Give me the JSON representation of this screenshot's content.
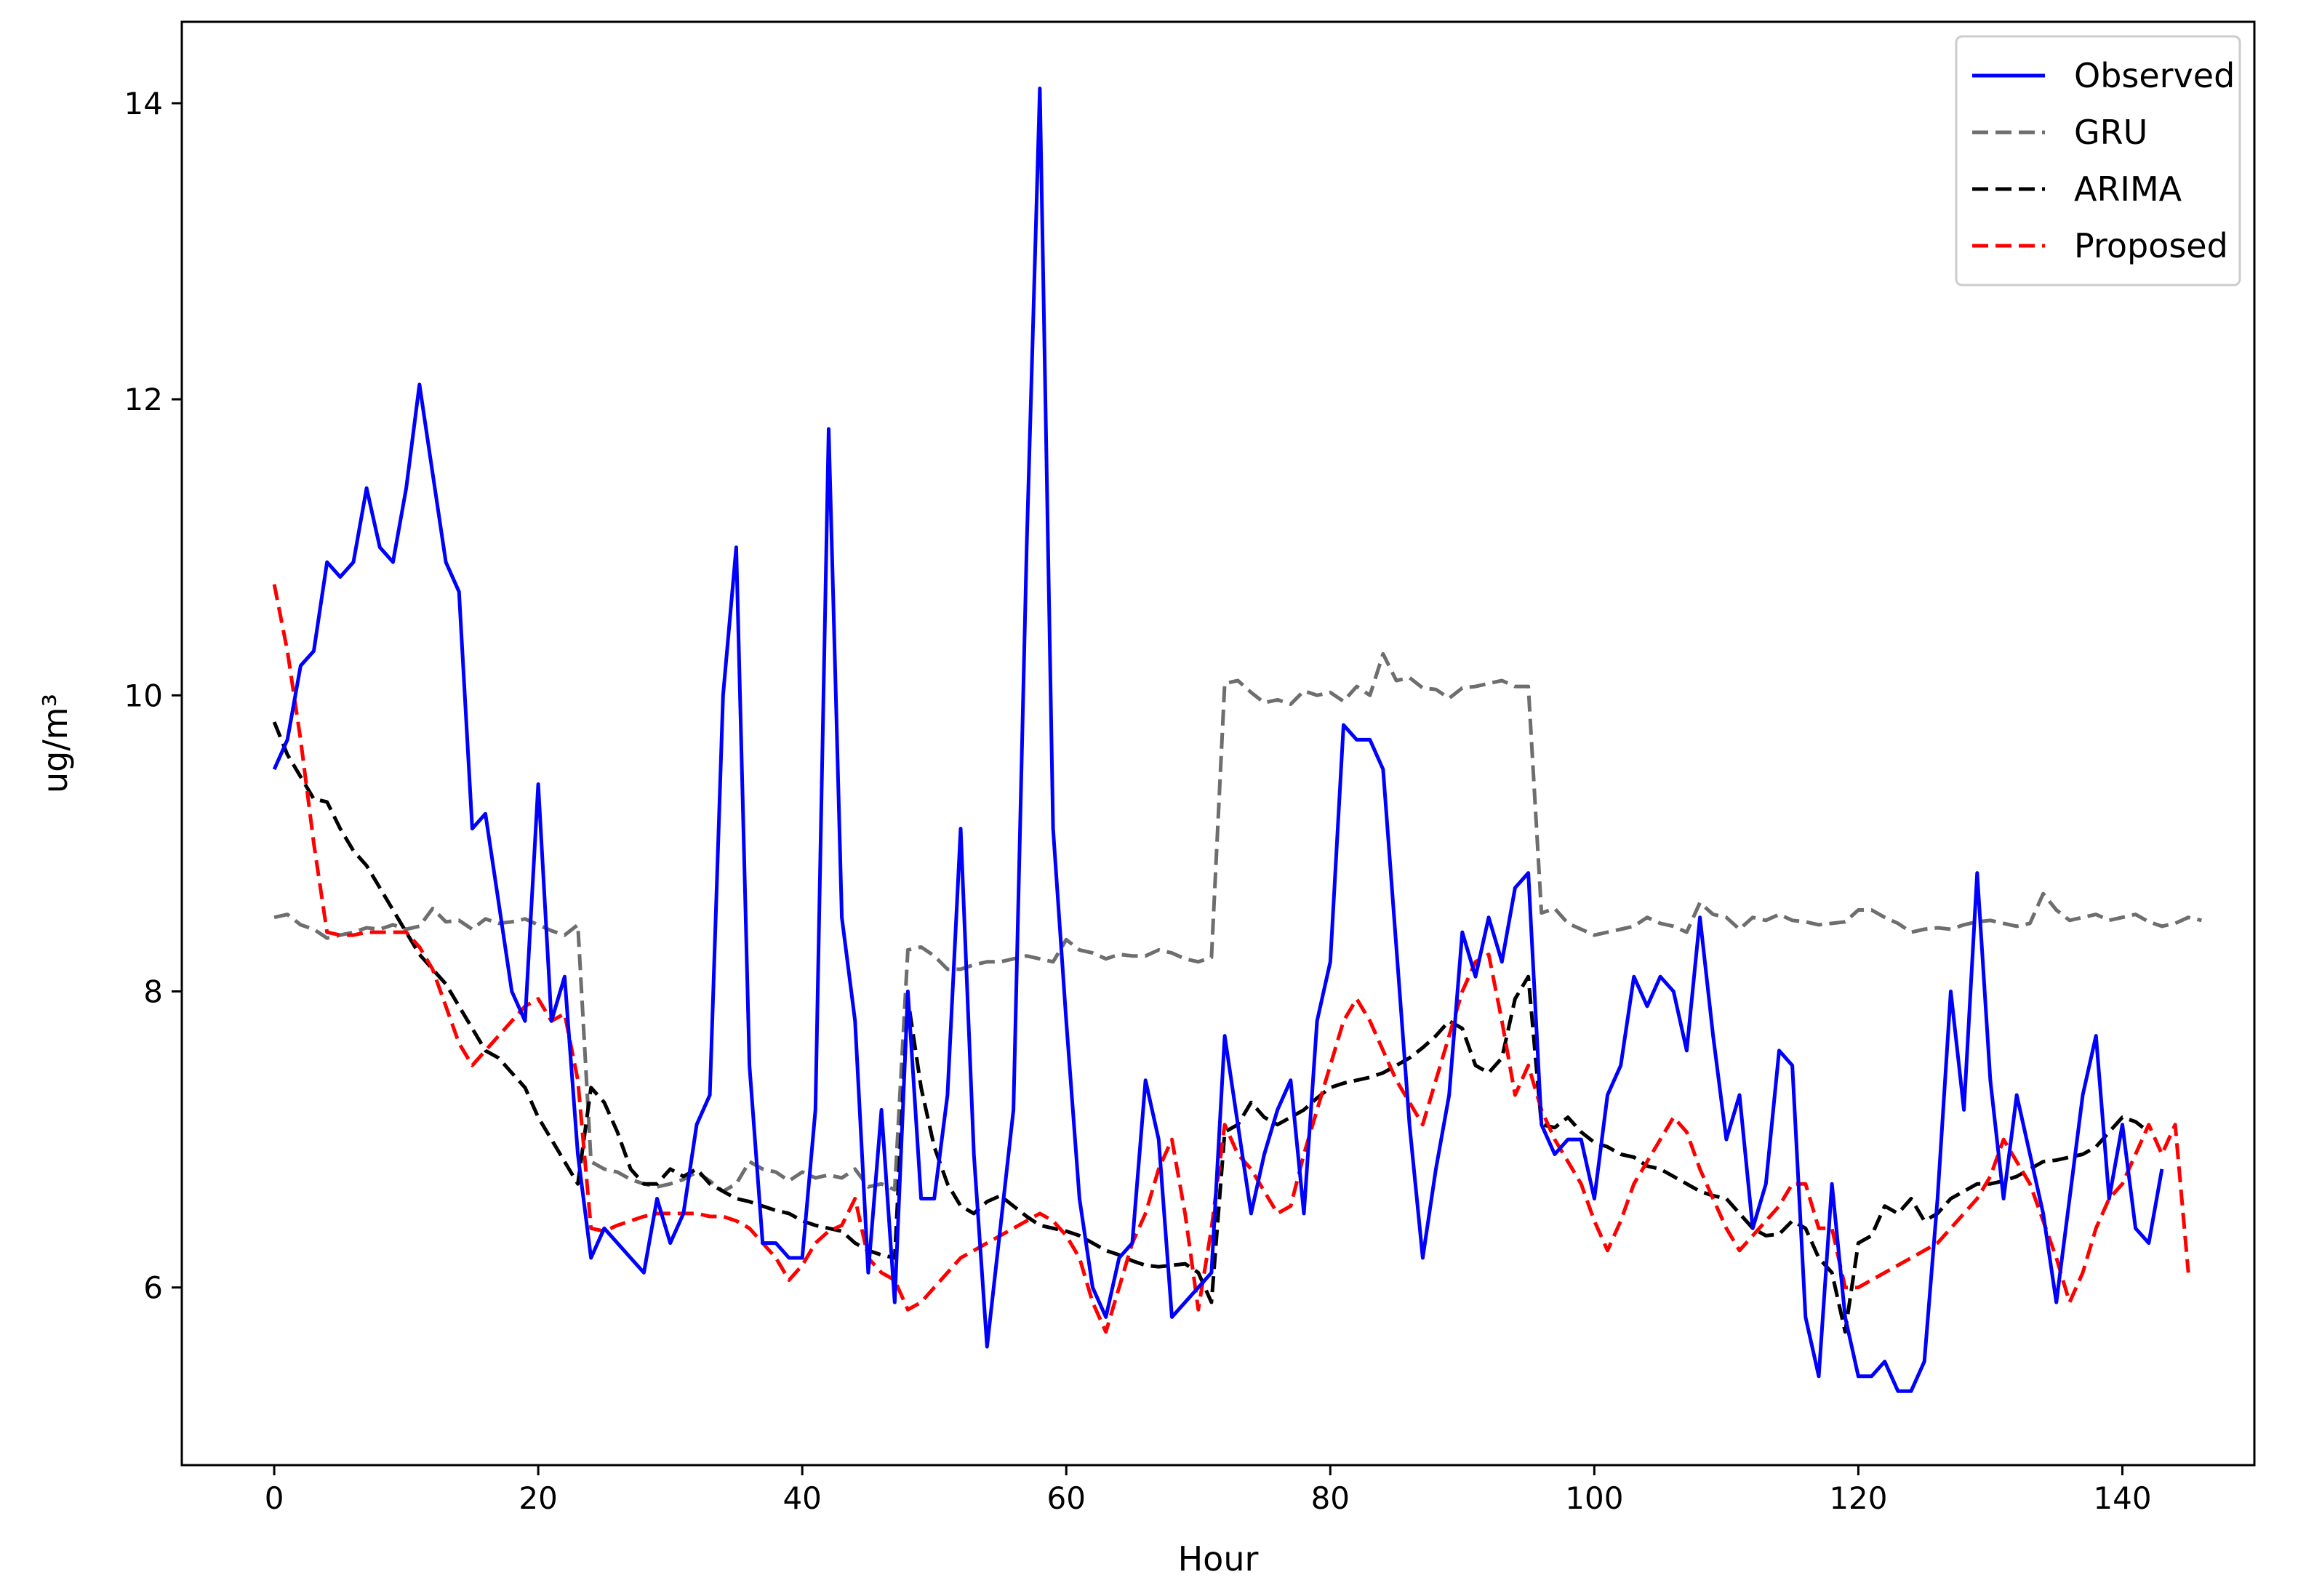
{
  "chart_data": {
    "type": "line",
    "title": "",
    "xlabel": "Hour",
    "ylabel": "ug/m³",
    "xlim": [
      -7,
      150
    ],
    "ylim": [
      4.8,
      14.55
    ],
    "xticks": [
      0,
      20,
      40,
      60,
      80,
      100,
      120,
      140
    ],
    "yticks": [
      6,
      8,
      10,
      12,
      14
    ],
    "grid": false,
    "legend_position": "top-right",
    "series": [
      {
        "name": "Observed",
        "color": "#0000ff",
        "style": "solid",
        "values": [
          9.5,
          9.7,
          10.2,
          10.3,
          10.9,
          10.8,
          10.9,
          11.4,
          11.0,
          10.9,
          11.4,
          12.1,
          11.5,
          10.9,
          10.7,
          9.1,
          9.2,
          8.6,
          8.0,
          7.8,
          9.4,
          7.8,
          8.1,
          6.9,
          6.2,
          6.4,
          6.3,
          6.2,
          6.1,
          6.6,
          6.3,
          6.5,
          7.1,
          7.3,
          10.0,
          11.0,
          7.5,
          6.3,
          6.3,
          6.2,
          6.2,
          7.2,
          11.8,
          8.5,
          7.8,
          6.1,
          7.2,
          5.9,
          8.0,
          6.6,
          6.6,
          7.3,
          9.1,
          6.9,
          5.6,
          6.4,
          7.2,
          11.0,
          14.1,
          9.1,
          7.8,
          6.6,
          6.0,
          5.8,
          6.2,
          6.3,
          7.4,
          7.0,
          5.8,
          5.9,
          6.0,
          6.1,
          7.7,
          7.1,
          6.5,
          6.9,
          7.2,
          7.4,
          6.5,
          7.8,
          8.2,
          9.8,
          9.7,
          9.7,
          9.5,
          8.3,
          7.1,
          6.2,
          6.8,
          7.3,
          8.4,
          8.1,
          8.5,
          8.2,
          8.7,
          8.8,
          7.1,
          6.9,
          7.0,
          7.0,
          6.6,
          7.3,
          7.5,
          8.1,
          7.9,
          8.1,
          8.0,
          7.6,
          8.5,
          7.7,
          7.0,
          7.3,
          6.4,
          6.7,
          7.6,
          7.5,
          5.8,
          5.4,
          6.7,
          5.8,
          5.4,
          5.4,
          5.5,
          5.3,
          5.3,
          5.5,
          6.6,
          8.0,
          7.2,
          8.8,
          7.4,
          6.6,
          7.3,
          6.9,
          6.5,
          5.9,
          6.6,
          7.3,
          7.7,
          6.6,
          7.1,
          6.4,
          6.3,
          6.8
        ]
      },
      {
        "name": "GRU",
        "color": "#6e6e6e",
        "style": "dashed",
        "values": [
          8.5,
          8.52,
          8.45,
          8.42,
          8.36,
          8.38,
          8.4,
          8.43,
          8.42,
          8.45,
          8.42,
          8.44,
          8.56,
          8.47,
          8.48,
          8.42,
          8.49,
          8.46,
          8.47,
          8.49,
          8.45,
          8.41,
          8.38,
          8.45,
          6.85,
          6.8,
          6.78,
          6.73,
          6.7,
          6.68,
          6.7,
          6.73,
          6.78,
          6.72,
          6.65,
          6.7,
          6.85,
          6.8,
          6.78,
          6.72,
          6.78,
          6.74,
          6.76,
          6.74,
          6.8,
          6.68,
          6.7,
          6.66,
          8.28,
          8.3,
          8.24,
          8.15,
          8.15,
          8.18,
          8.2,
          8.2,
          8.22,
          8.24,
          8.22,
          8.2,
          8.35,
          8.28,
          8.26,
          8.22,
          8.25,
          8.24,
          8.24,
          8.28,
          8.26,
          8.22,
          8.2,
          8.23,
          10.08,
          10.1,
          10.02,
          9.95,
          9.97,
          9.94,
          10.03,
          10.0,
          10.02,
          9.96,
          10.06,
          10.0,
          10.28,
          10.1,
          10.12,
          10.05,
          10.04,
          9.98,
          10.05,
          10.06,
          10.08,
          10.1,
          10.06,
          10.06,
          8.53,
          8.56,
          8.46,
          8.42,
          8.38,
          8.4,
          8.42,
          8.44,
          8.5,
          8.46,
          8.44,
          8.4,
          8.6,
          8.52,
          8.5,
          8.42,
          8.5,
          8.48,
          8.52,
          8.48,
          8.47,
          8.45,
          8.46,
          8.47,
          8.55,
          8.55,
          8.5,
          8.46,
          8.4,
          8.42,
          8.43,
          8.42,
          8.45,
          8.47,
          8.48,
          8.46,
          8.44,
          8.46,
          8.66,
          8.55,
          8.48,
          8.5,
          8.52,
          8.48,
          8.5,
          8.52,
          8.47,
          8.44,
          8.46,
          8.5,
          8.48
        ]
      },
      {
        "name": "ARIMA",
        "color": "#000000",
        "style": "dashed",
        "values": [
          9.82,
          9.6,
          9.45,
          9.3,
          9.28,
          9.1,
          8.95,
          8.85,
          8.7,
          8.55,
          8.4,
          8.25,
          8.15,
          8.05,
          7.9,
          7.75,
          7.6,
          7.55,
          7.45,
          7.35,
          7.15,
          7.0,
          6.85,
          6.7,
          7.35,
          7.25,
          7.05,
          6.8,
          6.7,
          6.7,
          6.8,
          6.75,
          6.8,
          6.7,
          6.65,
          6.6,
          6.58,
          6.55,
          6.52,
          6.5,
          6.45,
          6.42,
          6.4,
          6.38,
          6.3,
          6.25,
          6.22,
          6.2,
          7.95,
          7.35,
          6.95,
          6.7,
          6.55,
          6.5,
          6.58,
          6.62,
          6.55,
          6.48,
          6.42,
          6.4,
          6.38,
          6.35,
          6.3,
          6.25,
          6.22,
          6.18,
          6.15,
          6.14,
          6.15,
          6.16,
          6.1,
          5.9,
          7.05,
          7.1,
          7.25,
          7.15,
          7.1,
          7.15,
          7.2,
          7.28,
          7.35,
          7.38,
          7.4,
          7.42,
          7.45,
          7.5,
          7.55,
          7.62,
          7.7,
          7.8,
          7.75,
          7.5,
          7.45,
          7.55,
          7.95,
          8.1,
          7.1,
          7.08,
          7.15,
          7.05,
          6.98,
          6.95,
          6.9,
          6.88,
          6.82,
          6.8,
          6.75,
          6.7,
          6.65,
          6.62,
          6.6,
          6.5,
          6.4,
          6.35,
          6.36,
          6.45,
          6.4,
          6.2,
          6.1,
          5.7,
          6.3,
          6.35,
          6.55,
          6.5,
          6.6,
          6.45,
          6.5,
          6.6,
          6.65,
          6.7,
          6.7,
          6.72,
          6.75,
          6.8,
          6.85,
          6.86,
          6.88,
          6.9,
          6.95,
          7.05,
          7.15,
          7.12,
          7.05
        ]
      },
      {
        "name": "Proposed",
        "color": "#ff0000",
        "style": "dashed",
        "values": [
          10.75,
          10.3,
          9.7,
          9.0,
          8.4,
          8.38,
          8.38,
          8.4,
          8.4,
          8.4,
          8.4,
          8.3,
          8.15,
          7.9,
          7.65,
          7.5,
          7.6,
          7.7,
          7.8,
          7.9,
          7.95,
          7.8,
          7.85,
          7.4,
          6.4,
          6.38,
          6.42,
          6.45,
          6.48,
          6.5,
          6.5,
          6.5,
          6.5,
          6.48,
          6.48,
          6.45,
          6.4,
          6.3,
          6.2,
          6.05,
          6.15,
          6.3,
          6.38,
          6.42,
          6.6,
          6.2,
          6.1,
          6.05,
          5.85,
          5.9,
          6.0,
          6.1,
          6.2,
          6.25,
          6.3,
          6.35,
          6.4,
          6.45,
          6.5,
          6.45,
          6.35,
          6.2,
          5.9,
          5.7,
          6.0,
          6.3,
          6.5,
          6.8,
          7.0,
          6.5,
          5.85,
          6.4,
          7.1,
          6.9,
          6.8,
          6.65,
          6.5,
          6.55,
          6.9,
          7.2,
          7.5,
          7.8,
          7.95,
          7.8,
          7.6,
          7.4,
          7.25,
          7.1,
          7.4,
          7.7,
          8.0,
          8.2,
          8.25,
          7.8,
          7.3,
          7.5,
          7.2,
          7.0,
          6.85,
          6.7,
          6.45,
          6.25,
          6.45,
          6.7,
          6.85,
          7.0,
          7.15,
          7.05,
          6.8,
          6.6,
          6.4,
          6.25,
          6.35,
          6.45,
          6.55,
          6.7,
          6.7,
          6.4,
          6.4,
          6.0,
          6.0,
          6.05,
          6.1,
          6.15,
          6.2,
          6.25,
          6.3,
          6.4,
          6.5,
          6.6,
          6.75,
          7.0,
          6.85,
          6.7,
          6.45,
          6.2,
          5.9,
          6.1,
          6.4,
          6.6,
          6.7,
          6.9,
          7.1,
          6.9,
          7.1,
          6.1
        ]
      }
    ]
  }
}
